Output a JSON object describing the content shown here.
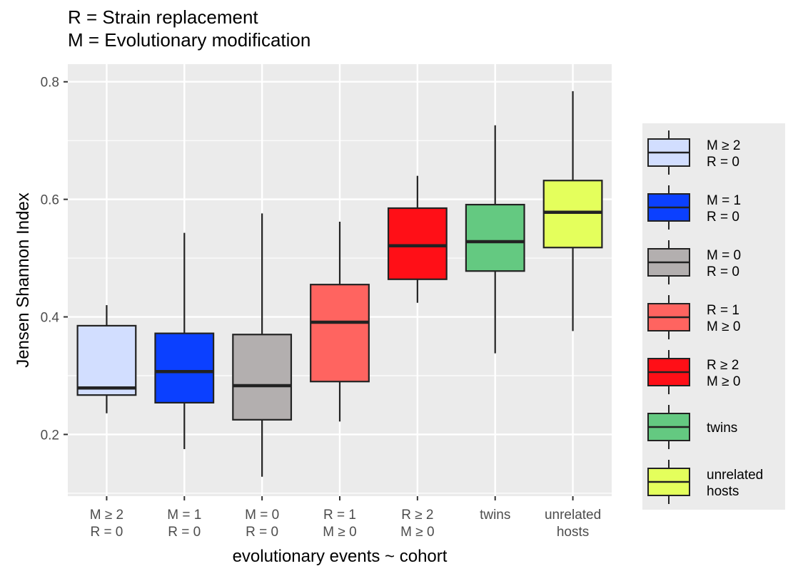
{
  "header": {
    "title_line1": "R = Strain replacement",
    "title_line2": "M = Evolutionary modification"
  },
  "chart_data": {
    "type": "box",
    "xlabel": "evolutionary events ~ cohort",
    "ylabel": "Jensen Shannon Index",
    "ylim": [
      0.095,
      0.83
    ],
    "yticks": [
      0.2,
      0.4,
      0.6,
      0.8
    ],
    "ytick_labels": [
      "0.2",
      "0.4",
      "0.6",
      "0.8"
    ],
    "grid": true,
    "legend_position": "right",
    "categories": [
      {
        "label": [
          "M ≥ 2",
          "R = 0"
        ],
        "color": "#d2deff",
        "whisker_low": 0.236,
        "q1": 0.267,
        "median": 0.279,
        "q3": 0.385,
        "whisker_high": 0.42
      },
      {
        "label": [
          "M = 1",
          "R = 0"
        ],
        "color": "#0b40ff",
        "whisker_low": 0.175,
        "q1": 0.254,
        "median": 0.307,
        "q3": 0.372,
        "whisker_high": 0.543
      },
      {
        "label": [
          "M = 0",
          "R = 0"
        ],
        "color": "#b3afaf",
        "whisker_low": 0.128,
        "q1": 0.225,
        "median": 0.283,
        "q3": 0.37,
        "whisker_high": 0.576
      },
      {
        "label": [
          "R = 1",
          "M ≥ 0"
        ],
        "color": "#ff6460",
        "whisker_low": 0.222,
        "q1": 0.29,
        "median": 0.391,
        "q3": 0.455,
        "whisker_high": 0.562
      },
      {
        "label": [
          "R ≥ 2",
          "M ≥ 0"
        ],
        "color": "#ff0f17",
        "whisker_low": 0.424,
        "q1": 0.464,
        "median": 0.521,
        "q3": 0.585,
        "whisker_high": 0.64
      },
      {
        "label": [
          "twins"
        ],
        "color": "#64c981",
        "whisker_low": 0.338,
        "q1": 0.478,
        "median": 0.528,
        "q3": 0.591,
        "whisker_high": 0.726
      },
      {
        "label": [
          "unrelated",
          "hosts"
        ],
        "color": "#e4ff5c",
        "whisker_low": 0.376,
        "q1": 0.518,
        "median": 0.578,
        "q3": 0.632,
        "whisker_high": 0.784
      }
    ]
  }
}
